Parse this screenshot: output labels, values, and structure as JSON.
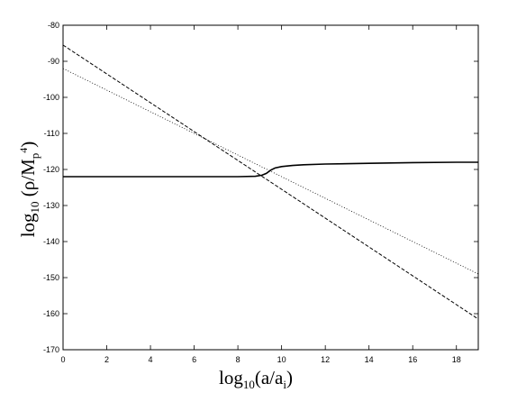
{
  "chart_data": {
    "type": "line",
    "title": "",
    "xlabel": {
      "main": "log",
      "sub": "10",
      "rest": "(a/a",
      "rest_sub": "i",
      "tail": ")"
    },
    "ylabel": {
      "main": "log",
      "sub": "10",
      "rest": " (ρ/M",
      "rest_sub": "p",
      "rest_sup": "4",
      "tail": ")"
    },
    "xlim": [
      0,
      19
    ],
    "ylim": [
      -170,
      -80
    ],
    "xticks": [
      0,
      2,
      4,
      6,
      8,
      10,
      12,
      14,
      16,
      18
    ],
    "yticks": [
      -80,
      -90,
      -100,
      -110,
      -120,
      -130,
      -140,
      -150,
      -160,
      -170
    ],
    "grid": false,
    "legend": "none",
    "series": [
      {
        "style": "dashed",
        "color": "#000000",
        "x": [
          0,
          19
        ],
        "y": [
          -85.5,
          -161.5
        ]
      },
      {
        "style": "dotted",
        "color": "#000000",
        "x": [
          0,
          19
        ],
        "y": [
          -92,
          -149
        ]
      },
      {
        "style": "solid",
        "color": "#000000",
        "x": [
          0,
          2,
          4,
          6,
          8,
          8.8,
          9.1,
          9.3,
          9.5,
          9.7,
          10,
          10.5,
          11,
          12,
          14,
          16,
          18,
          19
        ],
        "y": [
          -122,
          -122,
          -122,
          -122,
          -122,
          -121.9,
          -121.6,
          -121.1,
          -120.2,
          -119.6,
          -119.2,
          -118.9,
          -118.7,
          -118.5,
          -118.3,
          -118.1,
          -118.0,
          -118.0
        ]
      }
    ]
  }
}
